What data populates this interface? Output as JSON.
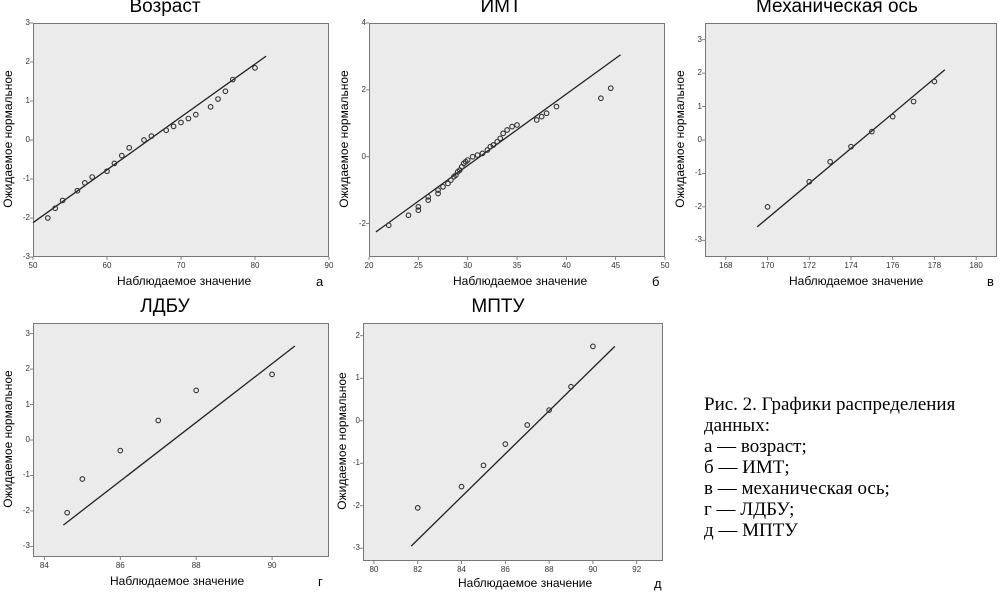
{
  "figure": {
    "caption_lines": [
      "Рис. 2. Графики распределения",
      "данных:",
      "а — возраст;",
      "б — ИМТ;",
      "в — механическая ось;",
      "г — ЛДБУ;",
      "д — МПТУ"
    ]
  },
  "chart_data": [
    {
      "type": "scatter",
      "title": "Возраст",
      "letter": "а",
      "xlabel": "Наблюдаемое значение",
      "ylabel": "Ожидаемое нормальное",
      "xlim": [
        50,
        90
      ],
      "ylim": [
        -3,
        3
      ],
      "xticks": [
        50,
        60,
        70,
        80,
        90
      ],
      "yticks": [
        -3,
        -2,
        -1,
        0,
        1,
        2,
        3
      ],
      "points": [
        [
          52,
          -2.0
        ],
        [
          53,
          -1.75
        ],
        [
          54,
          -1.55
        ],
        [
          56,
          -1.3
        ],
        [
          57,
          -1.1
        ],
        [
          58,
          -0.95
        ],
        [
          60,
          -0.8
        ],
        [
          61,
          -0.6
        ],
        [
          62,
          -0.4
        ],
        [
          63,
          -0.2
        ],
        [
          65,
          0.0
        ],
        [
          66,
          0.1
        ],
        [
          68,
          0.25
        ],
        [
          69,
          0.35
        ],
        [
          70,
          0.45
        ],
        [
          71,
          0.55
        ],
        [
          72,
          0.65
        ],
        [
          74,
          0.85
        ],
        [
          75,
          1.05
        ],
        [
          76,
          1.25
        ],
        [
          77,
          1.55
        ],
        [
          80,
          1.85
        ]
      ],
      "fit_line": [
        [
          50,
          -2.12
        ],
        [
          81.5,
          2.15
        ]
      ]
    },
    {
      "type": "scatter",
      "title": "ИМТ",
      "letter": "б",
      "xlabel": "Наблюдаемое значение",
      "ylabel": "Ожидаемое нормальное",
      "xlim": [
        20,
        50
      ],
      "ylim": [
        -3,
        4
      ],
      "xticks": [
        20,
        25,
        30,
        35,
        40,
        45,
        50
      ],
      "yticks": [
        -2,
        0,
        2,
        4
      ],
      "points": [
        [
          22,
          -2.05
        ],
        [
          24,
          -1.75
        ],
        [
          25,
          -1.5
        ],
        [
          25,
          -1.6
        ],
        [
          26,
          -1.2
        ],
        [
          26,
          -1.3
        ],
        [
          27,
          -1.0
        ],
        [
          27,
          -1.1
        ],
        [
          27.5,
          -0.9
        ],
        [
          28,
          -0.8
        ],
        [
          28.3,
          -0.7
        ],
        [
          28.6,
          -0.6
        ],
        [
          28.8,
          -0.55
        ],
        [
          29,
          -0.45
        ],
        [
          29.2,
          -0.4
        ],
        [
          29.4,
          -0.3
        ],
        [
          29.6,
          -0.2
        ],
        [
          29.8,
          -0.15
        ],
        [
          30,
          -0.1
        ],
        [
          30.5,
          0.0
        ],
        [
          31,
          0.05
        ],
        [
          31.5,
          0.1
        ],
        [
          32,
          0.2
        ],
        [
          32.3,
          0.3
        ],
        [
          32.6,
          0.35
        ],
        [
          33,
          0.45
        ],
        [
          33.3,
          0.55
        ],
        [
          33.6,
          0.7
        ],
        [
          34,
          0.8
        ],
        [
          34.5,
          0.9
        ],
        [
          35,
          0.95
        ],
        [
          37,
          1.1
        ],
        [
          37.5,
          1.2
        ],
        [
          38,
          1.3
        ],
        [
          39,
          1.5
        ],
        [
          43.5,
          1.75
        ],
        [
          44.5,
          2.05
        ]
      ],
      "fit_line": [
        [
          20.7,
          -2.25
        ],
        [
          45.5,
          3.05
        ]
      ]
    },
    {
      "type": "scatter",
      "title": "Механическая ось",
      "letter": "в",
      "xlabel": "Наблюдаемое значение",
      "ylabel": "Ожидаемое нормальное",
      "xlim": [
        167,
        181
      ],
      "ylim": [
        -3.5,
        3.5
      ],
      "xticks": [
        168,
        170,
        172,
        174,
        176,
        178,
        180
      ],
      "yticks": [
        -3,
        -2,
        -1,
        0,
        1,
        2,
        3
      ],
      "points": [
        [
          170,
          -2.0
        ],
        [
          172,
          -1.25
        ],
        [
          173,
          -0.65
        ],
        [
          174,
          -0.2
        ],
        [
          175,
          0.25
        ],
        [
          176,
          0.7
        ],
        [
          177,
          1.15
        ],
        [
          178,
          1.75
        ]
      ],
      "fit_line": [
        [
          169.5,
          -2.6
        ],
        [
          178.5,
          2.1
        ]
      ]
    },
    {
      "type": "scatter",
      "title": "ЛДБУ",
      "letter": "г",
      "xlabel": "Наблюдаемое значение",
      "ylabel": "Ожидаемое нормальное",
      "xlim": [
        83.7,
        91.5
      ],
      "ylim": [
        -3.3,
        3.3
      ],
      "xticks": [
        84,
        86,
        88,
        90
      ],
      "yticks": [
        -3,
        -2,
        -1,
        0,
        1,
        2,
        3
      ],
      "points": [
        [
          84.6,
          -2.05
        ],
        [
          85,
          -1.1
        ],
        [
          86,
          -0.3
        ],
        [
          87,
          0.55
        ],
        [
          88,
          1.4
        ],
        [
          90,
          1.85
        ]
      ],
      "fit_line": [
        [
          84.5,
          -2.4
        ],
        [
          90.6,
          2.65
        ]
      ]
    },
    {
      "type": "scatter",
      "title": "МПТУ",
      "letter": "д",
      "xlabel": "Наблюдаемое значение",
      "ylabel": "Ожидаемое нормальное",
      "xlim": [
        79.5,
        93.2
      ],
      "ylim": [
        -3.3,
        2.3
      ],
      "xticks": [
        80,
        82,
        84,
        86,
        88,
        90,
        92
      ],
      "yticks": [
        -3,
        -2,
        -1,
        0,
        1,
        2
      ],
      "points": [
        [
          82,
          -2.05
        ],
        [
          84,
          -1.55
        ],
        [
          85,
          -1.05
        ],
        [
          86,
          -0.55
        ],
        [
          87,
          -0.1
        ],
        [
          88,
          0.25
        ],
        [
          89,
          0.8
        ],
        [
          90,
          1.75
        ]
      ],
      "fit_line": [
        [
          81.7,
          -2.95
        ],
        [
          91,
          1.75
        ]
      ]
    }
  ]
}
